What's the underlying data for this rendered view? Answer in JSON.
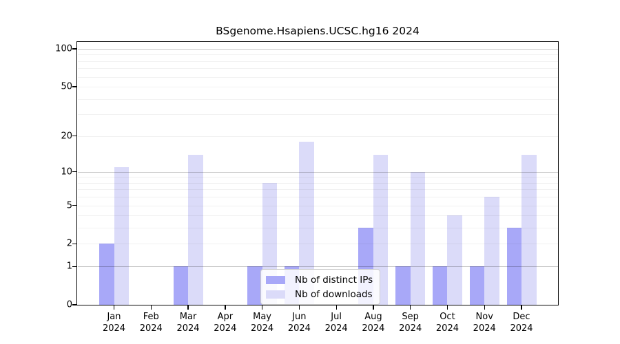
{
  "chart_data": {
    "type": "bar",
    "title": "BSgenome.Hsapiens.UCSC.hg16 2024",
    "categories": [
      "Jan",
      "Feb",
      "Mar",
      "Apr",
      "May",
      "Jun",
      "Jul",
      "Aug",
      "Sep",
      "Oct",
      "Nov",
      "Dec"
    ],
    "year_label": "2024",
    "series": [
      {
        "name": "Nb of distinct IPs",
        "color": "#a8a8f8",
        "values": [
          2,
          0,
          1,
          0,
          1,
          1,
          0,
          3,
          1,
          1,
          1,
          3
        ]
      },
      {
        "name": "Nb of downloads",
        "color": "#dbdbf9",
        "values": [
          11,
          0,
          14,
          0,
          8,
          18,
          0,
          14,
          10,
          4,
          6,
          14
        ]
      }
    ],
    "yscale": "log1p",
    "yticks": [
      100,
      50,
      20,
      10,
      5,
      2,
      1,
      0
    ],
    "ylim": [
      0,
      113
    ],
    "grid": {
      "minor_values": [
        2,
        3,
        4,
        5,
        6,
        7,
        8,
        9,
        20,
        30,
        40,
        50,
        60,
        70,
        80,
        90
      ],
      "major_values": [
        1,
        10,
        100
      ],
      "minor_color": "rgba(0,0,0,0.055)",
      "major_color": "rgba(0,0,0,0.22)"
    },
    "legend_position": "lower center",
    "axis_color": "#000000"
  }
}
